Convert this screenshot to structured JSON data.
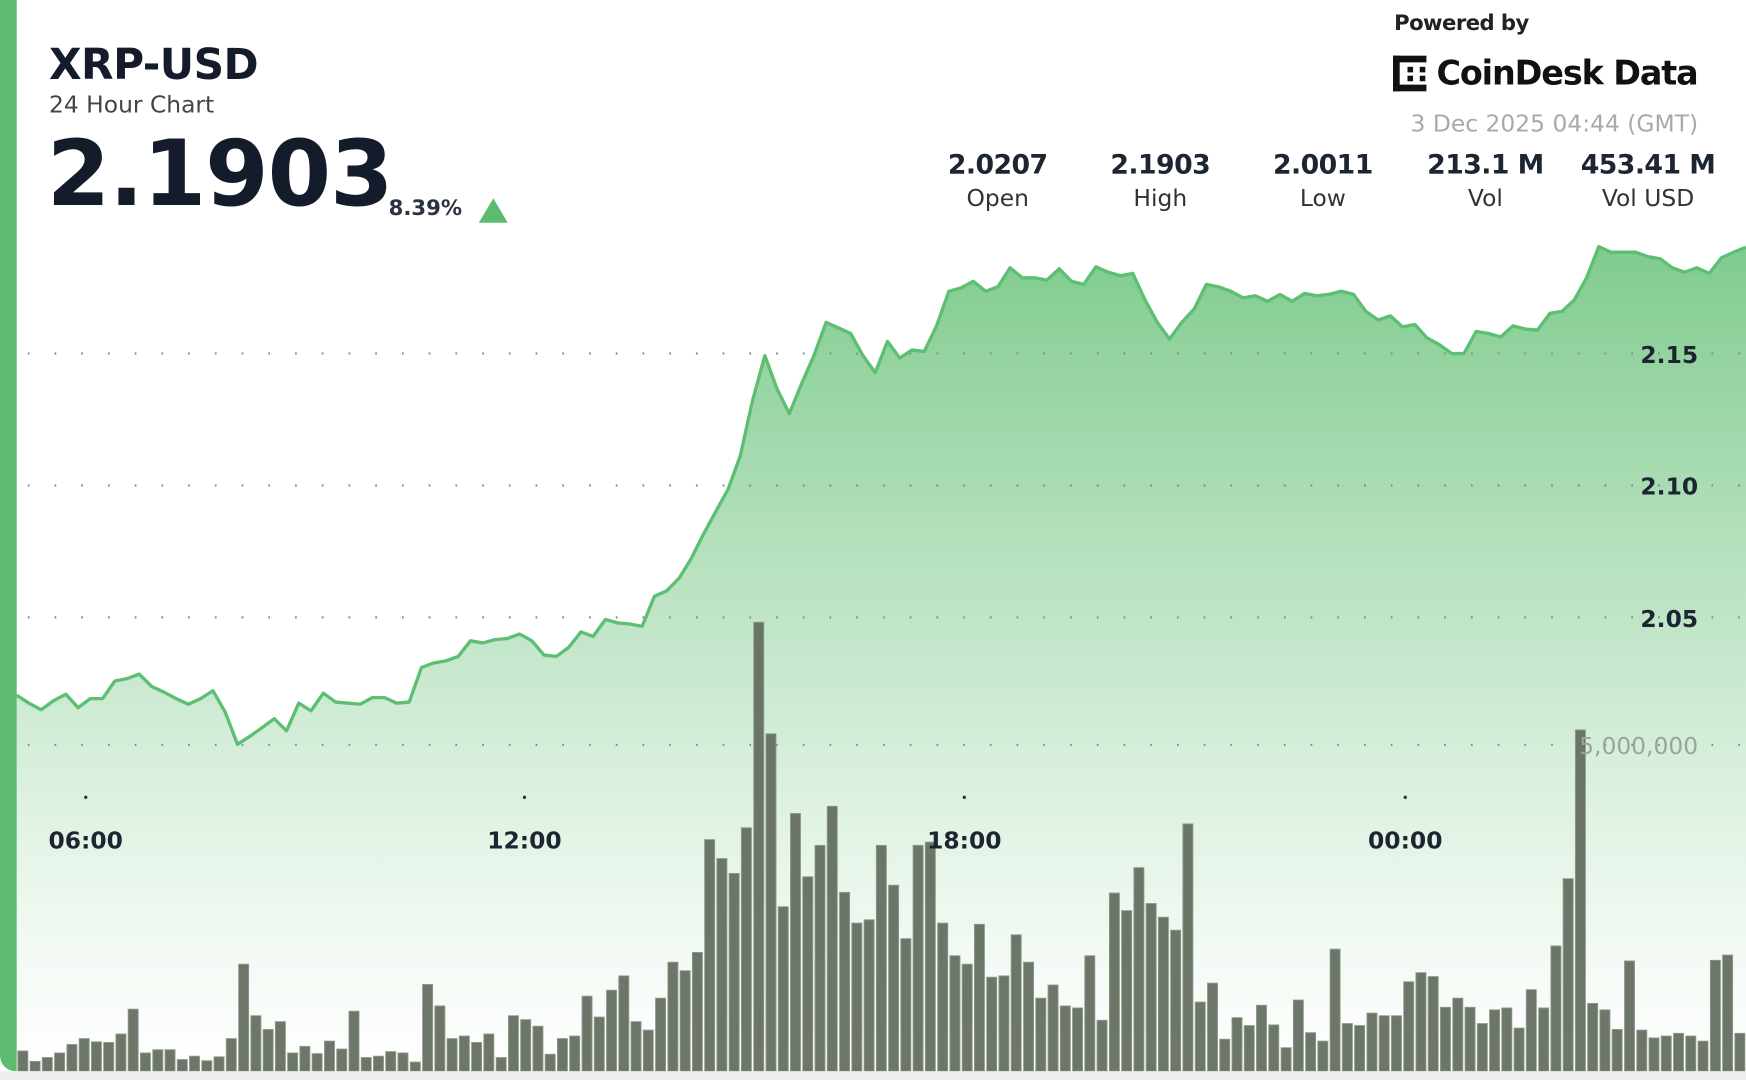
{
  "header": {
    "symbol": "XRP-USD",
    "subtitle": "24 Hour Chart",
    "price": "2.1903",
    "change_pct": "8.39%",
    "change_direction": "up",
    "change_icon": "triangle-up-icon"
  },
  "branding": {
    "powered_by": "Powered by",
    "logo_text": "CoinDesk Data",
    "timestamp": "3 Dec 2025 04:44 (GMT)"
  },
  "stats": [
    {
      "value": "2.0207",
      "label": "Open"
    },
    {
      "value": "2.1903",
      "label": "High"
    },
    {
      "value": "2.0011",
      "label": "Low"
    },
    {
      "value": "213.1 M",
      "label": "Vol"
    },
    {
      "value": "453.41 M",
      "label": "Vol USD"
    }
  ],
  "colors": {
    "accent": "#5dbb6f",
    "line": "#5cbf72",
    "area_top": "#7fcb8e",
    "volume_bar": "#5f6a5c"
  },
  "chart_data": {
    "type": "area",
    "interval": "10 min",
    "x_ticks": [
      "06:00",
      "12:00",
      "18:00",
      "00:00"
    ],
    "price": {
      "y_ticks": [
        "2.15",
        "2.10",
        "2.05"
      ],
      "tick_values": [
        2.15,
        2.1,
        2.05
      ],
      "ylim": [
        1.878,
        2.284
      ],
      "values": [
        2.0205,
        2.0175,
        2.015,
        2.0184,
        2.0209,
        2.0158,
        2.0192,
        2.0192,
        2.0259,
        2.0268,
        2.0285,
        2.0238,
        2.0217,
        2.0192,
        2.0171,
        2.0192,
        2.0222,
        2.0141,
        2.0019,
        2.0049,
        2.0082,
        2.0116,
        2.007,
        2.0175,
        2.0146,
        2.0213,
        2.0179,
        2.0175,
        2.0171,
        2.0196,
        2.0196,
        2.0175,
        2.0179,
        2.031,
        2.0327,
        2.0335,
        2.0352,
        2.0411,
        2.0403,
        2.0416,
        2.042,
        2.0437,
        2.0411,
        2.0357,
        2.0352,
        2.0386,
        2.0445,
        2.0428,
        2.0492,
        2.0479,
        2.0475,
        2.0466,
        2.058,
        2.0601,
        2.0648,
        2.0724,
        2.0816,
        2.0901,
        2.0985,
        2.1112,
        2.1323,
        2.1492,
        2.1365,
        2.1272,
        2.1386,
        2.1492,
        2.1618,
        2.1597,
        2.1576,
        2.1492,
        2.1428,
        2.1546,
        2.1483,
        2.1513,
        2.1508,
        2.1605,
        2.1736,
        2.1749,
        2.1774,
        2.1736,
        2.1753,
        2.1825,
        2.1787,
        2.1787,
        2.1778,
        2.1821,
        2.1774,
        2.1762,
        2.1829,
        2.1808,
        2.1795,
        2.1804,
        2.1703,
        2.1618,
        2.1555,
        2.1618,
        2.1669,
        2.1762,
        2.1753,
        2.1736,
        2.1711,
        2.1719,
        2.1698,
        2.1724,
        2.1698,
        2.1728,
        2.1719,
        2.1724,
        2.1736,
        2.1724,
        2.166,
        2.1627,
        2.1643,
        2.1601,
        2.161,
        2.1559,
        2.1534,
        2.15,
        2.15,
        2.1584,
        2.1576,
        2.1563,
        2.1605,
        2.1593,
        2.1589,
        2.1652,
        2.166,
        2.1703,
        2.1787,
        2.1905,
        2.1884,
        2.1884,
        2.1884,
        2.1867,
        2.1859,
        2.1825,
        2.1808,
        2.1825,
        2.1804,
        2.1863,
        2.1884,
        2.1903
      ]
    },
    "volume": {
      "type": "bar",
      "tick_label": "5,000,000",
      "tick_value": 5000000,
      "unit": "millions",
      "values": [
        0.31,
        0.15,
        0.21,
        0.28,
        0.41,
        0.5,
        0.45,
        0.44,
        0.57,
        0.95,
        0.28,
        0.33,
        0.33,
        0.18,
        0.23,
        0.16,
        0.22,
        0.5,
        1.64,
        0.85,
        0.64,
        0.76,
        0.28,
        0.38,
        0.27,
        0.46,
        0.34,
        0.92,
        0.21,
        0.23,
        0.3,
        0.28,
        0.14,
        1.33,
        1.0,
        0.5,
        0.54,
        0.44,
        0.57,
        0.21,
        0.85,
        0.79,
        0.69,
        0.26,
        0.5,
        0.54,
        1.15,
        0.83,
        1.24,
        1.46,
        0.76,
        0.63,
        1.12,
        1.67,
        1.54,
        1.82,
        3.55,
        3.26,
        3.03,
        3.73,
        6.88,
        5.17,
        2.52,
        3.95,
        2.98,
        3.46,
        4.06,
        2.74,
        2.27,
        2.32,
        3.46,
        2.85,
        2.03,
        3.46,
        3.51,
        2.27,
        1.77,
        1.64,
        2.25,
        1.44,
        1.46,
        2.09,
        1.67,
        1.12,
        1.32,
        1.0,
        0.97,
        1.77,
        0.78,
        2.73,
        2.46,
        3.12,
        2.57,
        2.36,
        2.16,
        3.79,
        1.06,
        1.35,
        0.49,
        0.82,
        0.7,
        1.01,
        0.71,
        0.36,
        1.09,
        0.59,
        0.46,
        1.87,
        0.73,
        0.7,
        0.89,
        0.85,
        0.85,
        1.37,
        1.51,
        1.45,
        0.98,
        1.12,
        0.98,
        0.73,
        0.94,
        0.97,
        0.66,
        1.25,
        0.97,
        1.92,
        2.95,
        5.23,
        1.04,
        0.94,
        0.64,
        1.69,
        0.63,
        0.51,
        0.54,
        0.58,
        0.54,
        0.46,
        1.7,
        1.78,
        0.58
      ]
    },
    "grid": "dotted",
    "legend": "none"
  }
}
